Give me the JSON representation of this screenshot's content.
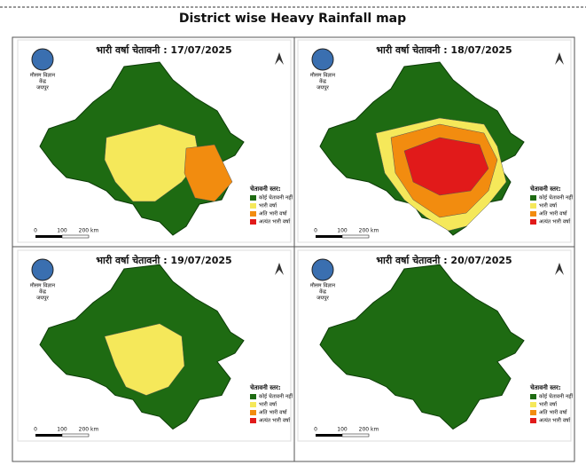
{
  "header": {
    "title": "District wise Heavy Rainfall map"
  },
  "panels": [
    {
      "title": "भारी वर्षा चेतावनी :  17/07/2025"
    },
    {
      "title": "भारी वर्षा चेतावनी :  18/07/2025"
    },
    {
      "title": "भारी वर्षा चेतावनी : 19/07/2025"
    },
    {
      "title": "भारी वर्षा चेतावनी : 20/07/2025"
    }
  ],
  "logo": {
    "lines": [
      "मौसम विज्ञान",
      "केंद्र",
      "जयपुर"
    ]
  },
  "legend": {
    "title": "चेतावनी स्तर:",
    "items": [
      {
        "label": "कोई चेतावनी नहीं",
        "color": "#1e6b12"
      },
      {
        "label": "भारी वर्षा",
        "color": "#f5e85a"
      },
      {
        "label": "अति भारी वर्षा",
        "color": "#f28c0f"
      },
      {
        "label": "अत्यंत भारी वर्षा",
        "color": "#e11a1a"
      }
    ]
  },
  "scale": {
    "labels": [
      "0",
      "100",
      "200 km"
    ]
  }
}
